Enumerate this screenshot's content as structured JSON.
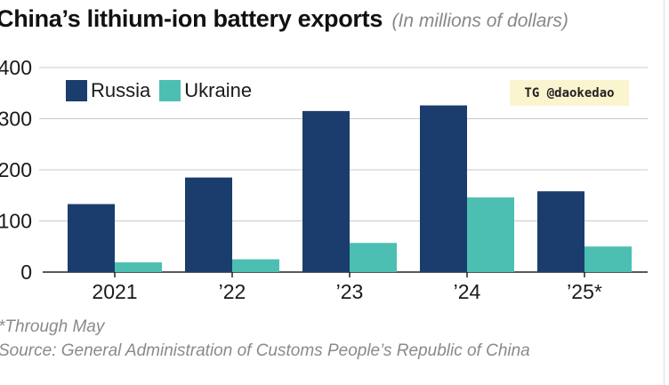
{
  "title": "China’s lithium-ion battery exports",
  "subtitle": "(In millions of dollars)",
  "watermark": "TG @daokedao",
  "footnotes": {
    "note": "*Through May",
    "source": "Source: General Administration of Customs People’s Republic of China"
  },
  "colors": {
    "russia": "#1b3d6e",
    "ukraine": "#4cbfb2",
    "grid": "#c8c8c8",
    "axis": "#222222"
  },
  "chart_data": {
    "type": "bar",
    "categories": [
      "2021",
      "’22",
      "’23",
      "’24",
      "’25*"
    ],
    "series": [
      {
        "name": "Russia",
        "values": [
          133,
          185,
          315,
          326,
          158
        ]
      },
      {
        "name": "Ukraine",
        "values": [
          19,
          25,
          57,
          146,
          50
        ]
      }
    ],
    "ylim": [
      0,
      400
    ],
    "yticks": [
      "0",
      "100",
      "200",
      "300",
      "400"
    ],
    "grid": true,
    "legend_position": "top-left",
    "xlabel": "",
    "ylabel": ""
  }
}
